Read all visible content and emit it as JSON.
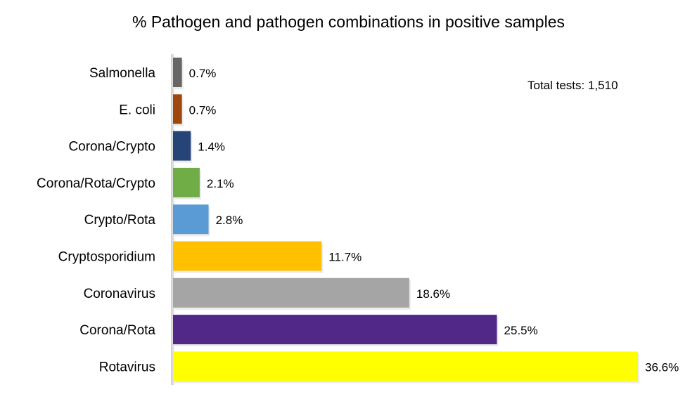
{
  "chart_data": {
    "type": "bar",
    "orientation": "horizontal",
    "title": "% Pathogen and pathogen combinations in positive samples",
    "annotation": "Total tests: 1,510",
    "categories": [
      "Salmonella",
      "E. coli",
      "Corona/Crypto",
      "Corona/Rota/Crypto",
      "Crypto/Rota",
      "Cryptosporidium",
      "Coronavirus",
      "Corona/Rota",
      "Rotavirus"
    ],
    "values": [
      0.7,
      0.7,
      1.4,
      2.1,
      2.8,
      11.7,
      18.6,
      25.5,
      36.6
    ],
    "data_labels": [
      "0.7%",
      "0.7%",
      "1.4%",
      "2.1%",
      "2.8%",
      "11.7%",
      "18.6%",
      "25.5%",
      "36.6%"
    ],
    "colors": [
      "#666666",
      "#9e480e",
      "#264478",
      "#70ad47",
      "#5b9bd5",
      "#ffc000",
      "#a5a5a5",
      "#512888",
      "#ffff00"
    ],
    "unit": "%",
    "xlim": [
      0,
      36.6
    ],
    "grid": false,
    "legend": "none"
  }
}
